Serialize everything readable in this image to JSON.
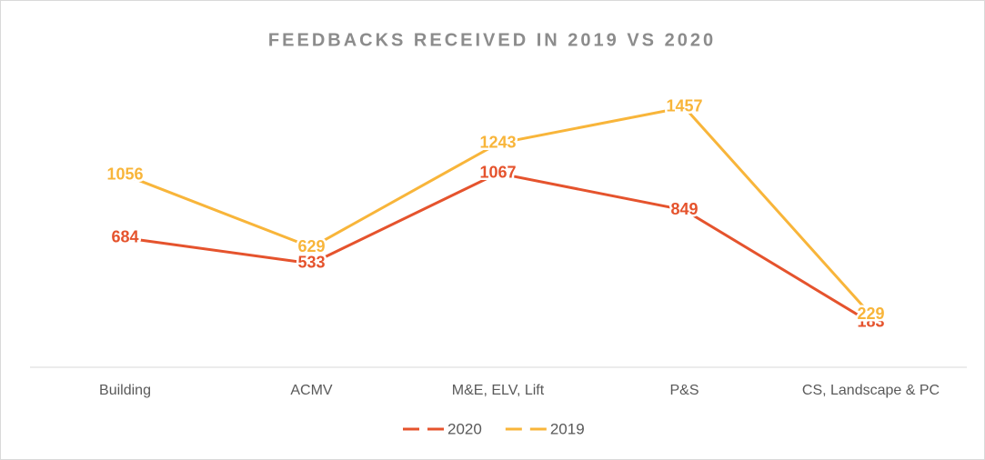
{
  "chart_data": {
    "type": "line",
    "title": "FEEDBACKS RECEIVED IN 2019 VS 2020",
    "categories": [
      "Building",
      "ACMV",
      "M&E, ELV, Lift",
      "P&S",
      "CS, Landscape & PC"
    ],
    "series": [
      {
        "name": "2020",
        "color": "#e5532d",
        "values": [
          684,
          533,
          1067,
          849,
          183
        ]
      },
      {
        "name": "2019",
        "color": "#f8b53a",
        "values": [
          1056,
          629,
          1243,
          1457,
          229
        ]
      }
    ],
    "legend": "bottom"
  }
}
